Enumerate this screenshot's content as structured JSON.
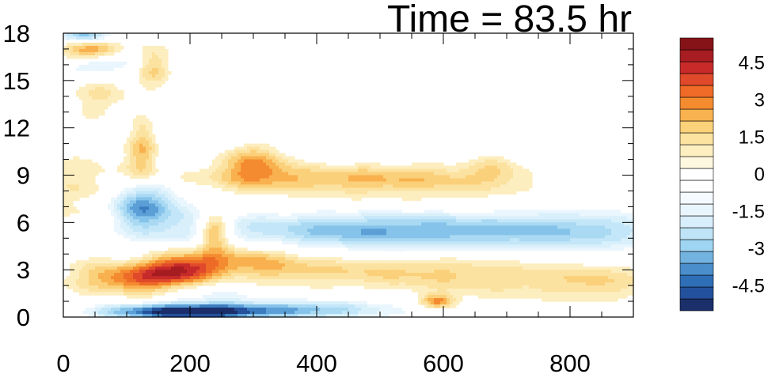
{
  "chart_data": {
    "type": "heatmap",
    "title": "Time = 83.5 hr",
    "xlabel": "",
    "ylabel": "",
    "xlim": [
      0,
      900
    ],
    "ylim": [
      0,
      18
    ],
    "x_ticks": [
      0,
      200,
      400,
      600,
      800
    ],
    "y_ticks": [
      0,
      3,
      6,
      9,
      12,
      15,
      18
    ],
    "colorbar": {
      "range": [
        -5.5,
        5.5
      ],
      "levels": [
        -5,
        -4.5,
        -4,
        -3.5,
        -3,
        -2.5,
        -2,
        -1.5,
        -1,
        -0.5,
        0,
        0.5,
        1,
        1.5,
        2,
        2.5,
        3,
        3.5,
        4,
        4.5,
        5
      ],
      "labels": [
        4.5,
        3,
        1.5,
        0,
        -1.5,
        -3,
        -4.5
      ],
      "colors": [
        "#1b2f6b",
        "#24519c",
        "#2f6fb8",
        "#4a8fcc",
        "#72b3e0",
        "#9fd4f2",
        "#c0e4f7",
        "#d8eefa",
        "#e9f5fc",
        "#f5fafe",
        "#ffffff",
        "#ffffff",
        "#fff8e0",
        "#fdefc0",
        "#fce3a0",
        "#fbd27a",
        "#f8b24f",
        "#f48c2f",
        "#ee6a26",
        "#e04a2a",
        "#c82a2a",
        "#a71d22",
        "#861317"
      ]
    },
    "features": [
      {
        "x": 610,
        "y": 5.6,
        "sx": 270,
        "sy": 0.9,
        "v": -2.2
      },
      {
        "x": 470,
        "y": 5.3,
        "sx": 180,
        "sy": 0.8,
        "v": -1.6
      },
      {
        "x": 820,
        "y": 5.2,
        "sx": 100,
        "sy": 1.0,
        "v": -1.1
      },
      {
        "x": 440,
        "y": 8.8,
        "sx": 180,
        "sy": 0.6,
        "v": 1.8
      },
      {
        "x": 300,
        "y": 9.8,
        "sx": 40,
        "sy": 0.9,
        "v": 2.6
      },
      {
        "x": 620,
        "y": 8.0,
        "sx": 220,
        "sy": 1.2,
        "v": 0.7
      },
      {
        "x": 400,
        "y": 3.0,
        "sx": 240,
        "sy": 0.7,
        "v": 1.3
      },
      {
        "x": 650,
        "y": 2.2,
        "sx": 130,
        "sy": 1.0,
        "v": 0.9
      },
      {
        "x": 845,
        "y": 2.2,
        "sx": 60,
        "sy": 0.7,
        "v": 1.2
      },
      {
        "x": 120,
        "y": 2.4,
        "sx": 60,
        "sy": 0.6,
        "v": 3.0
      },
      {
        "x": 190,
        "y": 3.1,
        "sx": 40,
        "sy": 0.7,
        "v": 3.2
      },
      {
        "x": 238,
        "y": 5.5,
        "sx": 18,
        "sy": 0.9,
        "v": 3.4
      },
      {
        "x": 290,
        "y": 3.8,
        "sx": 60,
        "sy": 0.8,
        "v": 1.6
      },
      {
        "x": 155,
        "y": 0.3,
        "sx": 80,
        "sy": 0.35,
        "v": -3.8
      },
      {
        "x": 300,
        "y": 0.4,
        "sx": 110,
        "sy": 0.35,
        "v": -3.2
      },
      {
        "x": 440,
        "y": 0.6,
        "sx": 100,
        "sy": 0.6,
        "v": -1.2
      },
      {
        "x": 590,
        "y": 1.0,
        "sx": 18,
        "sy": 0.3,
        "v": 2.6
      },
      {
        "x": 120,
        "y": 7.2,
        "sx": 35,
        "sy": 1.0,
        "v": -3.0
      },
      {
        "x": 160,
        "y": 6.5,
        "sx": 60,
        "sy": 1.2,
        "v": -1.2
      },
      {
        "x": 125,
        "y": 10.5,
        "sx": 18,
        "sy": 1.5,
        "v": 2.2
      },
      {
        "x": 40,
        "y": 16.9,
        "sx": 30,
        "sy": 0.45,
        "v": 3.0
      },
      {
        "x": 30,
        "y": 17.9,
        "sx": 30,
        "sy": 0.35,
        "v": -3.2
      },
      {
        "x": 60,
        "y": 16.0,
        "sx": 40,
        "sy": 0.5,
        "v": -1.8
      },
      {
        "x": 140,
        "y": 15.8,
        "sx": 20,
        "sy": 1.0,
        "v": 2.0
      },
      {
        "x": 60,
        "y": 14.0,
        "sx": 40,
        "sy": 1.0,
        "v": 1.3
      },
      {
        "x": 280,
        "y": 13.0,
        "sx": 200,
        "sy": 3.0,
        "v": -0.7
      },
      {
        "x": 700,
        "y": 14.5,
        "sx": 150,
        "sy": 1.8,
        "v": -0.6
      },
      {
        "x": 40,
        "y": 8.0,
        "sx": 40,
        "sy": 2.0,
        "v": 1.0
      },
      {
        "x": 230,
        "y": 1.5,
        "sx": 50,
        "sy": 1.2,
        "v": -1.3
      },
      {
        "x": 820,
        "y": 8.5,
        "sx": 80,
        "sy": 1.2,
        "v": -0.7
      },
      {
        "x": 680,
        "y": 9.5,
        "sx": 25,
        "sy": 0.6,
        "v": 1.0
      },
      {
        "x": 600,
        "y": 16.5,
        "sx": 120,
        "sy": 0.6,
        "v": 0.6
      }
    ]
  }
}
